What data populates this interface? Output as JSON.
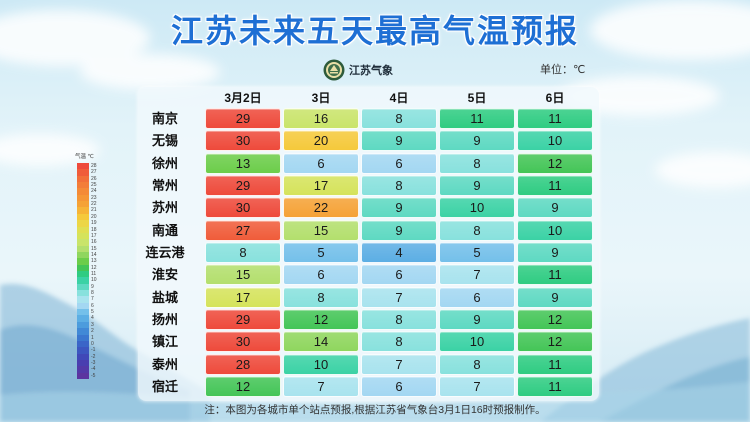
{
  "brand": {
    "name": "江苏气象",
    "icon": "jiangsu-meteorology-emblem-icon"
  },
  "chart_data": {
    "type": "heatmap",
    "title": "江苏未来五天最高气温预报",
    "unit": "单位：℃",
    "x": [
      "3月2日",
      "3日",
      "4日",
      "5日",
      "6日"
    ],
    "y": [
      "南京",
      "无锡",
      "徐州",
      "常州",
      "苏州",
      "南通",
      "连云港",
      "淮安",
      "盐城",
      "扬州",
      "镇江",
      "泰州",
      "宿迁"
    ],
    "values": [
      [
        29,
        16,
        8,
        11,
        11
      ],
      [
        30,
        20,
        9,
        9,
        10
      ],
      [
        13,
        6,
        6,
        8,
        12
      ],
      [
        29,
        17,
        8,
        9,
        11
      ],
      [
        30,
        22,
        9,
        10,
        9
      ],
      [
        27,
        15,
        9,
        8,
        10
      ],
      [
        8,
        5,
        4,
        5,
        9
      ],
      [
        15,
        6,
        6,
        7,
        11
      ],
      [
        17,
        8,
        7,
        6,
        9
      ],
      [
        29,
        12,
        8,
        9,
        12
      ],
      [
        30,
        14,
        8,
        10,
        12
      ],
      [
        28,
        10,
        7,
        8,
        11
      ],
      [
        12,
        7,
        6,
        7,
        11
      ]
    ],
    "legend": {
      "title": "气温 ℃",
      "position": "left",
      "scale": [
        {
          "value": 28,
          "color": "#ee4a3b"
        },
        {
          "value": 27,
          "color": "#f05c3a"
        },
        {
          "value": 26,
          "color": "#f26f39"
        },
        {
          "value": 25,
          "color": "#f37d38"
        },
        {
          "value": 24,
          "color": "#f48a37"
        },
        {
          "value": 23,
          "color": "#f59636"
        },
        {
          "value": 22,
          "color": "#f5a236"
        },
        {
          "value": 21,
          "color": "#f6b437"
        },
        {
          "value": 20,
          "color": "#f5c93b"
        },
        {
          "value": 19,
          "color": "#ecd646"
        },
        {
          "value": 18,
          "color": "#e0df52"
        },
        {
          "value": 17,
          "color": "#d5e35b"
        },
        {
          "value": 16,
          "color": "#c9e46a"
        },
        {
          "value": 15,
          "color": "#b3df6d"
        },
        {
          "value": 14,
          "color": "#8fd65e"
        },
        {
          "value": 13,
          "color": "#6ccd4a"
        },
        {
          "value": 12,
          "color": "#44c557"
        },
        {
          "value": 11,
          "color": "#2fcc82"
        },
        {
          "value": 10,
          "color": "#3bd2a5"
        },
        {
          "value": 9,
          "color": "#5ed9c2"
        },
        {
          "value": 8,
          "color": "#88e1dd"
        },
        {
          "value": 7,
          "color": "#a8e3ee"
        },
        {
          "value": 6,
          "color": "#a3d7f2"
        },
        {
          "value": 5,
          "color": "#74c0ea"
        },
        {
          "value": 4,
          "color": "#5caee4"
        },
        {
          "value": 3,
          "color": "#4c9cdd"
        },
        {
          "value": 2,
          "color": "#4189d6"
        },
        {
          "value": 1,
          "color": "#3b77cf"
        },
        {
          "value": 0,
          "color": "#3a65c8"
        },
        {
          "value": -1,
          "color": "#3c56c0"
        },
        {
          "value": -2,
          "color": "#4048b8"
        },
        {
          "value": -3,
          "color": "#493eb0"
        },
        {
          "value": -4,
          "color": "#5339a8"
        },
        {
          "value": -5,
          "color": "#5c34a0"
        }
      ]
    },
    "note": "注：本图为各城市单个站点预报,根据江苏省气象台3月1日16时预报制作。"
  }
}
